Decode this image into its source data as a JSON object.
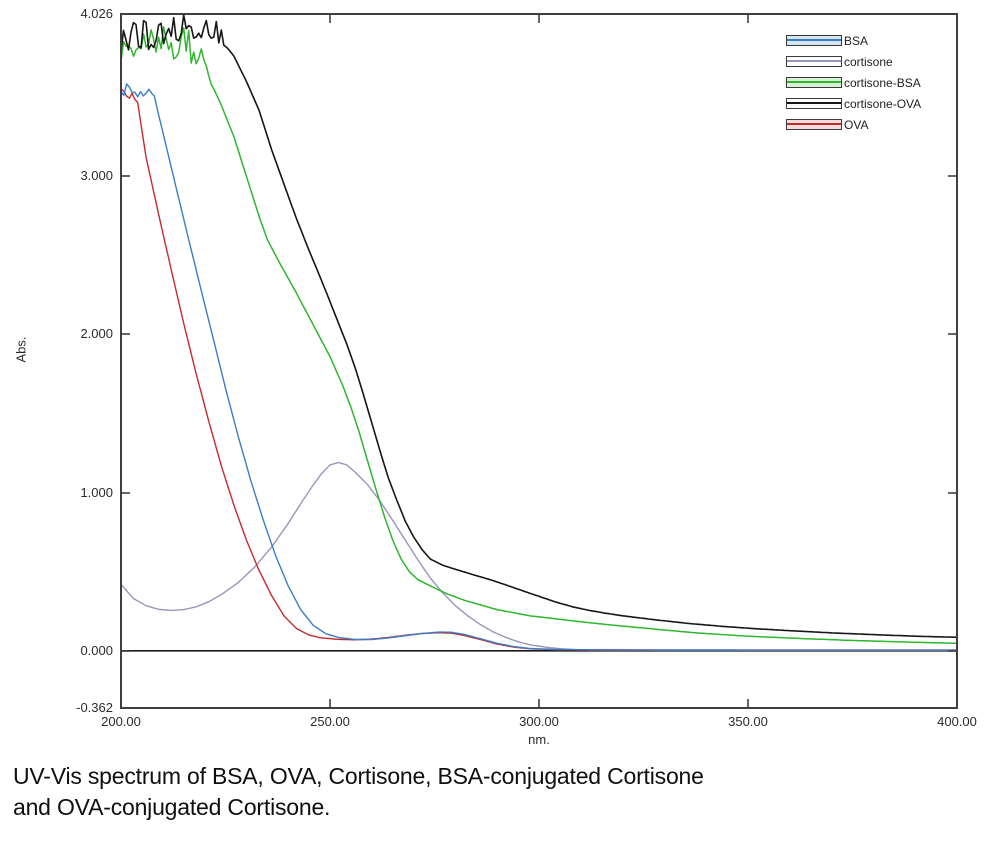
{
  "figure": {
    "caption_line1": "UV-Vis spectrum of BSA, OVA, Cortisone, BSA-conjugated Cortisone",
    "caption_line2": "and OVA-conjugated Cortisone."
  },
  "chart_data": {
    "type": "line",
    "title": "",
    "xlabel": "nm.",
    "ylabel": "Abs.",
    "xlim": [
      200,
      400
    ],
    "ylim": [
      -0.362,
      4.026
    ],
    "grid": "off",
    "zero_line": true,
    "legend_position": "top-right-inside",
    "x_ticks": [
      "200.00",
      "250.00",
      "300.00",
      "350.00",
      "400.00"
    ],
    "y_ticks": [
      "4.026",
      "3.000",
      "2.000",
      "1.000",
      "0.000",
      "-0.362"
    ],
    "x_tick_values": [
      200,
      250,
      300,
      350,
      400
    ],
    "y_tick_values": [
      4.026,
      3.0,
      2.0,
      1.0,
      0.0,
      -0.362
    ],
    "axis_color": "#3f3f3f",
    "draw_order": [
      1,
      4,
      0,
      2,
      3
    ],
    "series": [
      {
        "name": "BSA",
        "color": "#3b7cc9",
        "swatch_fill": "#d3e6f2",
        "line_width": 1.4,
        "noise": {
          "x_end": 208.5,
          "amplitude": 0.05
        },
        "points": [
          [
            200,
            3.53
          ],
          [
            202,
            3.56
          ],
          [
            204,
            3.52
          ],
          [
            206,
            3.55
          ],
          [
            208,
            3.5
          ],
          [
            210,
            3.28
          ],
          [
            213,
            2.95
          ],
          [
            216,
            2.62
          ],
          [
            219,
            2.3
          ],
          [
            222,
            1.98
          ],
          [
            225,
            1.66
          ],
          [
            228,
            1.36
          ],
          [
            231,
            1.08
          ],
          [
            234,
            0.83
          ],
          [
            237,
            0.6
          ],
          [
            240,
            0.41
          ],
          [
            243,
            0.26
          ],
          [
            246,
            0.16
          ],
          [
            249,
            0.108
          ],
          [
            252,
            0.084
          ],
          [
            256,
            0.071
          ],
          [
            260,
            0.071
          ],
          [
            264,
            0.081
          ],
          [
            268,
            0.095
          ],
          [
            272,
            0.109
          ],
          [
            276,
            0.118
          ],
          [
            279,
            0.117
          ],
          [
            282,
            0.104
          ],
          [
            286,
            0.076
          ],
          [
            290,
            0.047
          ],
          [
            294,
            0.026
          ],
          [
            298,
            0.014
          ],
          [
            304,
            0.008
          ],
          [
            312,
            0.006
          ],
          [
            330,
            0.005
          ],
          [
            360,
            0.004
          ],
          [
            400,
            0.004
          ]
        ]
      },
      {
        "name": "cortisone",
        "color": "#9596bc",
        "swatch_fill": "#fefefe",
        "line_width": 1.4,
        "points": [
          [
            200,
            0.42
          ],
          [
            203,
            0.33
          ],
          [
            206,
            0.285
          ],
          [
            209,
            0.262
          ],
          [
            212,
            0.255
          ],
          [
            215,
            0.26
          ],
          [
            218,
            0.278
          ],
          [
            221,
            0.31
          ],
          [
            224,
            0.355
          ],
          [
            228,
            0.43
          ],
          [
            232,
            0.53
          ],
          [
            236,
            0.655
          ],
          [
            240,
            0.805
          ],
          [
            243,
            0.93
          ],
          [
            246,
            1.05
          ],
          [
            248,
            1.12
          ],
          [
            250,
            1.175
          ],
          [
            252,
            1.19
          ],
          [
            254,
            1.175
          ],
          [
            256,
            1.13
          ],
          [
            259,
            1.05
          ],
          [
            262,
            0.945
          ],
          [
            265,
            0.825
          ],
          [
            268,
            0.7
          ],
          [
            271,
            0.575
          ],
          [
            274,
            0.46
          ],
          [
            277,
            0.365
          ],
          [
            280,
            0.285
          ],
          [
            283,
            0.22
          ],
          [
            286,
            0.165
          ],
          [
            289,
            0.12
          ],
          [
            292,
            0.085
          ],
          [
            295,
            0.057
          ],
          [
            298,
            0.037
          ],
          [
            302,
            0.021
          ],
          [
            306,
            0.011
          ],
          [
            310,
            0.006
          ],
          [
            320,
            0.004
          ],
          [
            350,
            0.003
          ],
          [
            400,
            0.003
          ]
        ]
      },
      {
        "name": "cortisone-BSA",
        "color": "#2eb62e",
        "swatch_fill": "#d8f0d6",
        "line_width": 1.5,
        "noise": {
          "x_end": 222,
          "amplitude": 0.11
        },
        "points": [
          [
            200,
            3.78
          ],
          [
            203,
            3.85
          ],
          [
            206,
            3.8
          ],
          [
            209,
            3.86
          ],
          [
            212,
            3.82
          ],
          [
            215,
            3.85
          ],
          [
            218,
            3.76
          ],
          [
            221,
            3.62
          ],
          [
            224,
            3.45
          ],
          [
            227,
            3.25
          ],
          [
            230,
            3.0
          ],
          [
            233,
            2.75
          ],
          [
            235,
            2.6
          ],
          [
            238,
            2.45
          ],
          [
            242,
            2.26
          ],
          [
            246,
            2.06
          ],
          [
            250,
            1.86
          ],
          [
            253,
            1.68
          ],
          [
            255,
            1.54
          ],
          [
            257,
            1.38
          ],
          [
            259,
            1.2
          ],
          [
            261,
            1.02
          ],
          [
            263,
            0.85
          ],
          [
            265,
            0.7
          ],
          [
            267,
            0.58
          ],
          [
            269,
            0.5
          ],
          [
            271,
            0.45
          ],
          [
            274,
            0.41
          ],
          [
            278,
            0.36
          ],
          [
            282,
            0.32
          ],
          [
            286,
            0.29
          ],
          [
            290,
            0.26
          ],
          [
            294,
            0.24
          ],
          [
            298,
            0.22
          ],
          [
            303,
            0.205
          ],
          [
            310,
            0.183
          ],
          [
            318,
            0.161
          ],
          [
            328,
            0.136
          ],
          [
            338,
            0.112
          ],
          [
            350,
            0.092
          ],
          [
            362,
            0.078
          ],
          [
            375,
            0.065
          ],
          [
            388,
            0.055
          ],
          [
            400,
            0.047
          ]
        ]
      },
      {
        "name": "cortisone-OVA",
        "color": "#161616",
        "swatch_fill": "#fcfcfc",
        "line_width": 1.6,
        "noise": {
          "x_end": 226,
          "amplitude": 0.1
        },
        "points": [
          [
            200,
            3.86
          ],
          [
            203,
            3.92
          ],
          [
            206,
            3.88
          ],
          [
            209,
            3.93
          ],
          [
            212,
            3.9
          ],
          [
            215,
            3.94
          ],
          [
            218,
            3.95
          ],
          [
            221,
            3.93
          ],
          [
            224,
            3.86
          ],
          [
            227,
            3.76
          ],
          [
            230,
            3.6
          ],
          [
            233,
            3.42
          ],
          [
            236,
            3.17
          ],
          [
            239,
            2.95
          ],
          [
            242,
            2.73
          ],
          [
            245,
            2.53
          ],
          [
            248,
            2.34
          ],
          [
            251,
            2.14
          ],
          [
            254,
            1.94
          ],
          [
            256,
            1.79
          ],
          [
            258,
            1.62
          ],
          [
            260,
            1.44
          ],
          [
            262,
            1.26
          ],
          [
            264,
            1.09
          ],
          [
            266,
            0.95
          ],
          [
            268,
            0.82
          ],
          [
            270,
            0.72
          ],
          [
            272,
            0.64
          ],
          [
            274,
            0.58
          ],
          [
            277,
            0.54
          ],
          [
            280,
            0.515
          ],
          [
            284,
            0.483
          ],
          [
            288,
            0.452
          ],
          [
            292,
            0.417
          ],
          [
            296,
            0.38
          ],
          [
            300,
            0.344
          ],
          [
            304,
            0.308
          ],
          [
            308,
            0.278
          ],
          [
            312,
            0.255
          ],
          [
            316,
            0.237
          ],
          [
            320,
            0.221
          ],
          [
            328,
            0.195
          ],
          [
            336,
            0.172
          ],
          [
            344,
            0.154
          ],
          [
            352,
            0.139
          ],
          [
            360,
            0.127
          ],
          [
            370,
            0.113
          ],
          [
            380,
            0.102
          ],
          [
            390,
            0.092
          ],
          [
            400,
            0.085
          ]
        ]
      },
      {
        "name": "OVA",
        "color": "#c62b2b",
        "swatch_fill": "#f4dddd",
        "line_width": 1.4,
        "noise": {
          "x_end": 204.5,
          "amplitude": 0.06
        },
        "points": [
          [
            200,
            3.5
          ],
          [
            202,
            3.53
          ],
          [
            204,
            3.46
          ],
          [
            206,
            3.12
          ],
          [
            209,
            2.76
          ],
          [
            212,
            2.41
          ],
          [
            215,
            2.07
          ],
          [
            218,
            1.75
          ],
          [
            221,
            1.45
          ],
          [
            224,
            1.17
          ],
          [
            227,
            0.92
          ],
          [
            230,
            0.7
          ],
          [
            233,
            0.51
          ],
          [
            236,
            0.35
          ],
          [
            239,
            0.22
          ],
          [
            242,
            0.14
          ],
          [
            245,
            0.099
          ],
          [
            248,
            0.081
          ],
          [
            252,
            0.072
          ],
          [
            256,
            0.069
          ],
          [
            260,
            0.074
          ],
          [
            264,
            0.084
          ],
          [
            268,
            0.098
          ],
          [
            272,
            0.109
          ],
          [
            276,
            0.114
          ],
          [
            279,
            0.111
          ],
          [
            282,
            0.097
          ],
          [
            286,
            0.071
          ],
          [
            290,
            0.042
          ],
          [
            294,
            0.023
          ],
          [
            298,
            0.012
          ],
          [
            304,
            0.007
          ],
          [
            312,
            0.005
          ],
          [
            330,
            0.004
          ],
          [
            360,
            0.004
          ],
          [
            400,
            0.004
          ]
        ]
      }
    ]
  }
}
